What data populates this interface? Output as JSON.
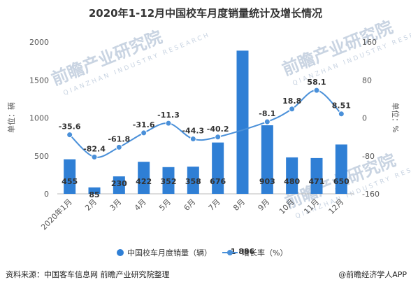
{
  "chart_data": {
    "type": "bar",
    "title": "2020年1-12月中国校车月度销量统计及增长情况",
    "categories": [
      "2020年1月",
      "2月",
      "3月",
      "4月",
      "5月",
      "6月",
      "7月",
      "8月",
      "9月",
      "10月",
      "11月",
      "12月"
    ],
    "series": [
      {
        "name": "中国校车月度销量（辆）",
        "type": "bar",
        "axis": "left",
        "color": "#2f7fd5",
        "values": [
          455,
          85,
          230,
          422,
          352,
          358,
          676,
          1886,
          903,
          480,
          471,
          650
        ],
        "labels": [
          "455",
          "85",
          "230",
          "422",
          "352",
          "358",
          "676",
          "1 886",
          "903",
          "480",
          "471",
          "650"
        ]
      },
      {
        "name": "增长率（%）",
        "type": "line",
        "axis": "right",
        "color": "#4a90d9",
        "values": [
          -35.6,
          -82.4,
          -61.8,
          -31.6,
          -11.3,
          -44.3,
          -40.2,
          null,
          -8.1,
          18.8,
          58.1,
          8.51
        ],
        "labels": [
          "-35.6",
          "-82.4",
          "-61.8",
          "-31.6",
          "-11.3",
          "-44.3",
          "-40.2",
          "",
          "-8.1",
          "18.8",
          "58.1",
          "8.51"
        ]
      }
    ],
    "left_axis": {
      "label": "单位：辆",
      "ylim": [
        0,
        2000
      ],
      "ticks": [
        "0",
        "500",
        "1000",
        "1500",
        "2000"
      ]
    },
    "right_axis": {
      "label": "单位：%",
      "ylim": [
        -160,
        160
      ],
      "ticks": [
        "-160",
        "-80",
        "0",
        "80",
        "160"
      ]
    },
    "legend_position": "bottom",
    "grid": false
  },
  "source": "资料来源：中国客车信息网 前瞻产业研究院整理",
  "brand": "@前瞻经济学人APP",
  "watermark": {
    "main": "前瞻产业研究院",
    "sub": "QIANZHAN INDUSTRY RESEARCH"
  }
}
